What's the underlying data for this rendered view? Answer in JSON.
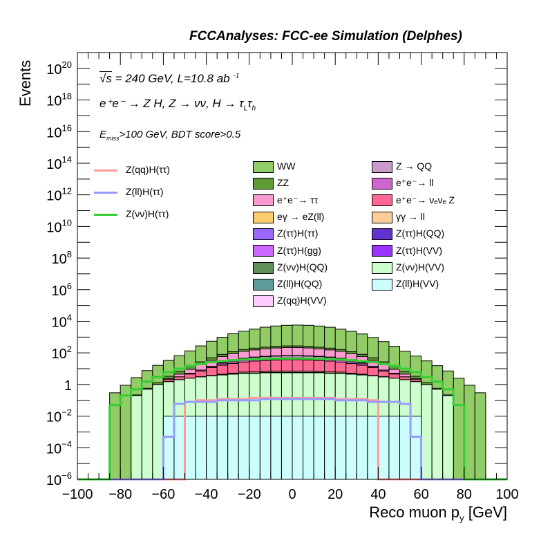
{
  "header": {
    "title": "FCCAnalyses: FCC-ee Simulation (Delphes)"
  },
  "annotations": {
    "line1_sqrt": "√s",
    "line1_rest": " = 240 GeV, L=10.8 ab ",
    "line1_exp": "-1",
    "line2": "e⁺e⁻ → Z H, Z → νν, H → τ",
    "line2_sub1": "L",
    "line2_mid": "τ",
    "line2_sub2": "h",
    "line3_pre": "E",
    "line3_sub": "miss",
    "line3_rest": ">100 GeV, BDT score>0.5"
  },
  "chart_data": {
    "type": "histogram-stacked",
    "title": "",
    "xlabel": "Reco muon p_y [GeV]",
    "xlabel_text": "Reco muon p",
    "xlabel_sub": "y",
    "xlabel_unit": " [GeV]",
    "ylabel": "Events",
    "xlim": [
      -100,
      100
    ],
    "ylim": [
      1e-06,
      1e+21
    ],
    "yscale": "log",
    "x_ticks": [
      "−100",
      "−80",
      "−60",
      "−40",
      "−20",
      "0",
      "20",
      "40",
      "60",
      "80",
      "100"
    ],
    "y_ticks": [
      {
        "base": "10",
        "exp": "−6",
        "value": 1e-06
      },
      {
        "base": "10",
        "exp": "−4",
        "value": 0.0001
      },
      {
        "base": "10",
        "exp": "−2",
        "value": 0.01
      },
      {
        "base": "1",
        "exp": "",
        "value": 1
      },
      {
        "base": "10",
        "exp": "2",
        "value": 100.0
      },
      {
        "base": "10",
        "exp": "4",
        "value": 10000.0
      },
      {
        "base": "10",
        "exp": "6",
        "value": 1000000.0
      },
      {
        "base": "10",
        "exp": "8",
        "value": 100000000.0
      },
      {
        "base": "10",
        "exp": "10",
        "value": 10000000000.0
      },
      {
        "base": "10",
        "exp": "12",
        "value": 1000000000000.0
      },
      {
        "base": "10",
        "exp": "14",
        "value": 100000000000000.0
      },
      {
        "base": "10",
        "exp": "16",
        "value": 1e+16
      },
      {
        "base": "10",
        "exp": "18",
        "value": 1e+18
      },
      {
        "base": "10",
        "exp": "20",
        "value": 1e+20
      }
    ],
    "bin_width": 5,
    "bin_edges_start": -100,
    "stacked_background": [
      {
        "name": "WW",
        "color": "#92cc66",
        "values": [
          1e-06,
          1e-06,
          1e-06,
          0.3,
          0.9,
          2.5,
          7,
          15,
          30,
          60,
          120,
          250,
          500,
          900,
          1500,
          2200,
          3000,
          4000,
          4800,
          5300,
          5500,
          5300,
          4800,
          4000,
          3000,
          2200,
          1500,
          900,
          500,
          250,
          120,
          60,
          30,
          15,
          7,
          2.5,
          0.9,
          0.3,
          1e-06,
          1e-06
        ]
      },
      {
        "name": "ZZ",
        "color": "#609a36",
        "values": [
          1e-06,
          1e-06,
          1e-06,
          1e-06,
          1e-06,
          0.02,
          0.08,
          0.3,
          1,
          2.5,
          5,
          9,
          15,
          22,
          30,
          38,
          45,
          50,
          55,
          58,
          58,
          55,
          50,
          45,
          38,
          30,
          22,
          15,
          9,
          5,
          2.5,
          1,
          0.3,
          0.08,
          0.02,
          1e-06,
          1e-06,
          1e-06,
          1e-06,
          1e-06
        ]
      },
      {
        "name": "e⁺e⁻→ ττ",
        "color": "#f99bd0",
        "values": [
          1e-06,
          1e-06,
          1e-06,
          1e-06,
          1e-06,
          1e-06,
          1e-06,
          0.02,
          0.3,
          1.5,
          4,
          10,
          20,
          35,
          55,
          80,
          100,
          120,
          140,
          150,
          150,
          140,
          120,
          100,
          80,
          55,
          35,
          20,
          10,
          4,
          1.5,
          0.3,
          0.02,
          1e-06,
          1e-06,
          1e-06,
          1e-06,
          1e-06,
          1e-06,
          1e-06
        ]
      },
      {
        "name": "eγ → eZ(ll)",
        "color": "#fece6e",
        "values": [
          1e-06,
          1e-06,
          1e-06,
          1e-06,
          1e-06,
          1e-06,
          1e-06,
          1e-06,
          1e-06,
          1e-06,
          1e-06,
          0.02,
          0.05,
          0.1,
          0.2,
          0.3,
          0.5,
          0.6,
          0.7,
          0.8,
          0.8,
          0.7,
          0.6,
          0.5,
          0.3,
          0.2,
          0.1,
          0.05,
          0.02,
          1e-06,
          1e-06,
          1e-06,
          1e-06,
          1e-06,
          1e-06,
          1e-06,
          1e-06,
          1e-06,
          1e-06,
          1e-06
        ]
      },
      {
        "name": "Z(ττ)H(ττ)",
        "color": "#9b66fe",
        "values": [
          1e-06,
          1e-06,
          1e-06,
          1e-06,
          1e-06,
          1e-06,
          1e-06,
          1e-06,
          0.01,
          0.02,
          0.05,
          0.1,
          0.2,
          0.4,
          0.6,
          0.8,
          1,
          1.2,
          1.3,
          1.4,
          1.4,
          1.3,
          1.2,
          1,
          0.8,
          0.6,
          0.4,
          0.2,
          0.1,
          0.05,
          0.02,
          0.01,
          1e-06,
          1e-06,
          1e-06,
          1e-06,
          1e-06,
          1e-06,
          1e-06,
          1e-06
        ]
      },
      {
        "name": "Z(νν)H(QQ)",
        "color": "#5f8f5a",
        "values": [
          1e-06,
          1e-06,
          1e-06,
          1e-06,
          1e-06,
          1e-06,
          1e-06,
          1e-06,
          1e-06,
          1e-06,
          1e-06,
          1e-06,
          1e-06,
          1e-06,
          1e-06,
          1e-06,
          0.3,
          0.5,
          0.6,
          0.5,
          0.5,
          0.6,
          0.5,
          0.3,
          1e-06,
          1e-06,
          1e-06,
          1e-06,
          1e-06,
          1e-06,
          1e-06,
          1e-06,
          1e-06,
          1e-06,
          1e-06,
          1e-06,
          1e-06,
          1e-06,
          1e-06,
          1e-06
        ]
      },
      {
        "name": "Z(ll)H(QQ)",
        "color": "#5e9a9a",
        "values": [
          1e-06,
          1e-06,
          1e-06,
          1e-06,
          1e-06,
          1e-06,
          1e-06,
          1e-06,
          1e-06,
          1e-06,
          1e-06,
          1e-06,
          1e-06,
          1e-06,
          1e-06,
          1e-06,
          1e-06,
          1e-06,
          1e-06,
          1e-06,
          1e-06,
          1e-06,
          1e-06,
          1e-06,
          0.0002,
          1e-06,
          1e-06,
          1e-06,
          1e-06,
          1e-06,
          1e-06,
          1e-06,
          1e-06,
          1e-06,
          1e-06,
          1e-06,
          1e-06,
          1e-06,
          1e-06,
          1e-06
        ]
      },
      {
        "name": "Z(qq)H(VV)",
        "color": "#fecbfe",
        "values": [
          1e-06,
          1e-06,
          1e-06,
          1e-06,
          1e-06,
          1e-06,
          1e-06,
          1e-06,
          1e-06,
          1e-06,
          1e-06,
          1e-06,
          1e-06,
          1e-06,
          0.05,
          0.1,
          0.2,
          0.3,
          0.4,
          0.4,
          0.4,
          0.4,
          0.3,
          0.2,
          0.1,
          0.05,
          1e-06,
          1e-06,
          1e-06,
          1e-06,
          1e-06,
          1e-06,
          1e-06,
          1e-06,
          1e-06,
          1e-06,
          1e-06,
          1e-06,
          1e-06,
          1e-06
        ]
      },
      {
        "name": "Z → QQ",
        "color": "#c99bcb",
        "values": [
          1e-06,
          1e-06,
          1e-06,
          1e-06,
          1e-06,
          1e-06,
          1e-06,
          1e-06,
          1e-06,
          1e-06,
          1e-06,
          1e-06,
          1e-06,
          3,
          6,
          10,
          12,
          14,
          15,
          16,
          16,
          15,
          14,
          12,
          10,
          6,
          3,
          1e-06,
          1e-06,
          1e-06,
          1e-06,
          1e-06,
          1e-06,
          1e-06,
          1e-06,
          1e-06,
          1e-06,
          1e-06,
          1e-06,
          1e-06
        ]
      },
      {
        "name": "e⁺e⁻→ ll",
        "color": "#cc66cc",
        "values": [
          1e-06,
          1e-06,
          1e-06,
          1e-06,
          1e-06,
          1e-06,
          1e-06,
          1e-06,
          1e-06,
          1e-06,
          0.5,
          1,
          2,
          4,
          6,
          8,
          10,
          11,
          12,
          12,
          12,
          12,
          11,
          10,
          8,
          6,
          4,
          2,
          1,
          0.5,
          1e-06,
          1e-06,
          1e-06,
          1e-06,
          1e-06,
          1e-06,
          1e-06,
          1e-06,
          1e-06,
          1e-06
        ]
      },
      {
        "name": "e⁺e⁻→ νₑνₑ Z",
        "color": "#fd6792",
        "values": [
          1e-06,
          1e-06,
          1e-06,
          1e-06,
          1e-06,
          1e-06,
          1e-06,
          1e-06,
          0.5,
          1,
          2,
          4,
          8,
          12,
          16,
          20,
          24,
          26,
          28,
          30,
          30,
          28,
          26,
          24,
          20,
          16,
          12,
          8,
          4,
          2,
          1,
          0.5,
          1e-06,
          1e-06,
          1e-06,
          1e-06,
          1e-06,
          1e-06,
          1e-06,
          1e-06
        ]
      },
      {
        "name": "γγ → ll",
        "color": "#fece98",
        "values": [
          1e-06,
          1e-06,
          1e-06,
          1e-06,
          1e-06,
          1e-06,
          1e-06,
          1e-06,
          1e-06,
          1e-06,
          1e-06,
          1e-06,
          0.1,
          0.3,
          0.5,
          0.8,
          1,
          1,
          1.2,
          1.2,
          1.2,
          1.2,
          1,
          1,
          0.8,
          0.5,
          0.3,
          0.1,
          1e-06,
          1e-06,
          1e-06,
          1e-06,
          1e-06,
          1e-06,
          1e-06,
          1e-06,
          1e-06,
          1e-06,
          1e-06,
          1e-06
        ]
      },
      {
        "name": "Z(ττ)H(QQ)",
        "color": "#6133cc",
        "values": [
          1e-06,
          1e-06,
          1e-06,
          1e-06,
          1e-06,
          1e-06,
          1e-06,
          1e-06,
          1e-06,
          1e-06,
          1e-06,
          1e-06,
          1e-06,
          1e-06,
          0.002,
          1e-06,
          0.02,
          0.03,
          0.03,
          0.02,
          0.02,
          0.03,
          0.03,
          0.02,
          1e-06,
          0.002,
          1e-06,
          1e-06,
          1e-06,
          1e-06,
          1e-06,
          1e-06,
          1e-06,
          1e-06,
          1e-06,
          1e-06,
          1e-06,
          1e-06,
          1e-06,
          1e-06
        ]
      },
      {
        "name": "Z(ττ)H(gg)",
        "color": "#cc66fe",
        "values": [
          1e-06,
          1e-06,
          1e-06,
          1e-06,
          1e-06,
          1e-06,
          1e-06,
          1e-06,
          1e-06,
          1e-06,
          1e-06,
          0.01,
          0.02,
          0.05,
          0.08,
          0.1,
          0.12,
          0.14,
          0.15,
          0.15,
          0.15,
          0.15,
          0.14,
          0.12,
          0.1,
          0.08,
          0.05,
          0.02,
          0.01,
          1e-06,
          1e-06,
          1e-06,
          1e-06,
          1e-06,
          1e-06,
          1e-06,
          1e-06,
          1e-06,
          1e-06,
          1e-06
        ]
      },
      {
        "name": "Z(ττ)H(VV)",
        "color": "#9a33fe",
        "values": [
          1e-06,
          1e-06,
          1e-06,
          1e-06,
          1e-06,
          1e-06,
          1e-06,
          1e-06,
          0.02,
          0.03,
          0.05,
          0.08,
          0.1,
          0.12,
          0.15,
          0.18,
          0.2,
          0.2,
          0.22,
          0.22,
          0.22,
          0.22,
          0.2,
          0.2,
          0.18,
          0.15,
          0.12,
          0.1,
          0.08,
          0.05,
          0.03,
          0.02,
          1e-06,
          1e-06,
          1e-06,
          1e-06,
          1e-06,
          1e-06,
          1e-06,
          1e-06
        ]
      },
      {
        "name": "Z(νν)H(VV)",
        "color": "#cdfecd",
        "values": [
          1e-06,
          1e-06,
          1e-06,
          1e-06,
          1e-06,
          0.2,
          0.5,
          1,
          1.5,
          2,
          2.5,
          3,
          3.5,
          4,
          4.5,
          5,
          5,
          5.5,
          5.5,
          5.5,
          5.5,
          5.5,
          5.5,
          5,
          5,
          4.5,
          4,
          3.5,
          3,
          2.5,
          2,
          1.5,
          1,
          0.5,
          0.2,
          1e-06,
          1e-06,
          1e-06,
          1e-06,
          1e-06
        ]
      },
      {
        "name": "Z(ll)H(VV)",
        "color": "#cdfefe",
        "values": [
          1e-06,
          1e-06,
          1e-06,
          1e-06,
          1e-06,
          1e-06,
          1e-06,
          1e-06,
          0.01,
          0.01,
          0.01,
          0.01,
          0.01,
          0.01,
          0.01,
          0.01,
          0.01,
          0.01,
          0.01,
          0.01,
          0.01,
          0.01,
          0.01,
          0.01,
          0.01,
          0.01,
          0.01,
          0.01,
          0.01,
          0.01,
          0.01,
          0.01,
          1e-06,
          1e-06,
          1e-06,
          1e-06,
          1e-06,
          1e-06,
          1e-06,
          1e-06
        ]
      }
    ],
    "signal_lines": [
      {
        "name": "Z(qq)H(ττ)",
        "color": "#fe9a9a",
        "values": [
          1e-06,
          1e-06,
          1e-06,
          1e-06,
          1e-06,
          1e-06,
          1e-06,
          1e-06,
          1e-06,
          1e-06,
          0.08,
          0.1,
          0.1,
          0.12,
          0.12,
          0.12,
          0.14,
          0.14,
          0.14,
          0.14,
          0.14,
          0.14,
          0.14,
          0.14,
          0.12,
          0.12,
          0.12,
          0.1,
          1e-06,
          1e-06,
          1e-06,
          1e-06,
          1e-06,
          1e-06,
          1e-06,
          1e-06,
          1e-06,
          1e-06,
          1e-06,
          1e-06
        ]
      },
      {
        "name": "Z(ll)H(ττ)",
        "color": "#9a9afe",
        "values": [
          1e-06,
          1e-06,
          1e-06,
          1e-06,
          1e-06,
          1e-06,
          1e-06,
          1e-06,
          0.0005,
          0.06,
          0.08,
          0.08,
          0.08,
          0.1,
          0.1,
          0.1,
          0.1,
          0.12,
          0.12,
          0.12,
          0.12,
          0.12,
          0.12,
          0.12,
          0.1,
          0.1,
          0.1,
          0.08,
          0.08,
          0.08,
          0.06,
          0.0005,
          1e-06,
          1e-06,
          1e-06,
          1e-06,
          1e-06,
          1e-06,
          1e-06,
          1e-06
        ]
      },
      {
        "name": "Z(νν)H(ττ)",
        "color": "#33cc33",
        "values": [
          1e-06,
          1e-06,
          1e-06,
          0.05,
          0.2,
          0.5,
          1.5,
          3,
          6,
          10,
          15,
          20,
          26,
          30,
          35,
          38,
          40,
          42,
          43,
          44,
          44,
          43,
          42,
          40,
          38,
          35,
          30,
          26,
          20,
          15,
          10,
          6,
          3,
          1.5,
          0.5,
          0.05,
          1e-06,
          1e-06,
          1e-06,
          1e-06
        ]
      }
    ],
    "legend": {
      "lines": [
        "Z(qq)H(ττ)",
        "Z(ll)H(ττ)",
        "Z(νν)H(ττ)"
      ],
      "fills_col1": [
        "WW",
        "ZZ",
        "e⁺e⁻→ ττ",
        "eγ → eZ(ll)",
        "Z(ττ)H(ττ)",
        "Z(ττ)H(gg)",
        "Z(νν)H(QQ)",
        "Z(ll)H(QQ)",
        "Z(qq)H(VV)"
      ],
      "fills_col2": [
        "Z → QQ",
        "e⁺e⁻→ ll",
        "e⁺e⁻→ νₑνₑ Z",
        "γγ → ll",
        "Z(ττ)H(QQ)",
        "Z(ττ)H(VV)",
        "Z(νν)H(VV)",
        "Z(ll)H(VV)"
      ]
    },
    "grid": false,
    "legend_position": "top"
  }
}
